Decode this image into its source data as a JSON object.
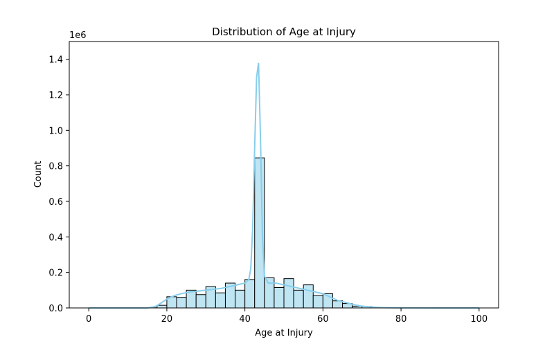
{
  "chart_data": {
    "type": "histogram",
    "title": "Distribution of Age at Injury",
    "xlabel": "Age at Injury",
    "ylabel": "Count",
    "y_offset_label": "1e6",
    "xlim": [
      -5,
      105
    ],
    "ylim": [
      0,
      1.5
    ],
    "xticks": [
      0,
      20,
      40,
      60,
      80,
      100
    ],
    "yticks": [
      0.0,
      0.2,
      0.4,
      0.6,
      0.8,
      1.0,
      1.2,
      1.4
    ],
    "ytick_labels": [
      "0.0",
      "0.2",
      "0.4",
      "0.6",
      "0.8",
      "1.0",
      "1.2",
      "1.4"
    ],
    "units_note": "y values in millions",
    "bin_width": 2.5,
    "bins": [
      {
        "start": 0.0,
        "value": 0.0
      },
      {
        "start": 2.5,
        "value": 0.0
      },
      {
        "start": 5.0,
        "value": 0.0
      },
      {
        "start": 7.5,
        "value": 0.0
      },
      {
        "start": 10.0,
        "value": 0.0
      },
      {
        "start": 12.5,
        "value": 0.0
      },
      {
        "start": 15.0,
        "value": 0.001
      },
      {
        "start": 17.5,
        "value": 0.015
      },
      {
        "start": 20.0,
        "value": 0.063
      },
      {
        "start": 22.5,
        "value": 0.06
      },
      {
        "start": 25.0,
        "value": 0.1
      },
      {
        "start": 27.5,
        "value": 0.075
      },
      {
        "start": 30.0,
        "value": 0.12
      },
      {
        "start": 32.5,
        "value": 0.085
      },
      {
        "start": 35.0,
        "value": 0.14
      },
      {
        "start": 37.5,
        "value": 0.1
      },
      {
        "start": 40.0,
        "value": 0.16
      },
      {
        "start": 42.5,
        "value": 0.845
      },
      {
        "start": 45.0,
        "value": 0.17
      },
      {
        "start": 47.5,
        "value": 0.115
      },
      {
        "start": 50.0,
        "value": 0.165
      },
      {
        "start": 52.5,
        "value": 0.1
      },
      {
        "start": 55.0,
        "value": 0.13
      },
      {
        "start": 57.5,
        "value": 0.07
      },
      {
        "start": 60.0,
        "value": 0.08
      },
      {
        "start": 62.5,
        "value": 0.04
      },
      {
        "start": 65.0,
        "value": 0.025
      },
      {
        "start": 67.5,
        "value": 0.01
      },
      {
        "start": 70.0,
        "value": 0.008
      },
      {
        "start": 72.5,
        "value": 0.003
      },
      {
        "start": 75.0,
        "value": 0.002
      },
      {
        "start": 77.5,
        "value": 0.001
      },
      {
        "start": 80.0,
        "value": 0.0005
      },
      {
        "start": 82.5,
        "value": 0.0
      },
      {
        "start": 85.0,
        "value": 0.0
      },
      {
        "start": 87.5,
        "value": 0.0
      },
      {
        "start": 90.0,
        "value": 0.0
      },
      {
        "start": 92.5,
        "value": 0.0
      },
      {
        "start": 95.0,
        "value": 0.0
      },
      {
        "start": 97.5,
        "value": 0.0
      }
    ],
    "kde_curve": {
      "x": [
        0,
        10,
        15,
        17,
        18,
        19,
        20,
        22,
        24,
        26,
        28,
        30,
        32,
        34,
        36,
        38,
        40,
        41,
        41.5,
        42,
        42.5,
        43,
        43.5,
        44,
        44.5,
        45,
        46,
        48,
        50,
        52,
        54,
        56,
        58,
        60,
        62,
        64,
        66,
        68,
        70,
        72,
        75,
        80,
        90,
        100
      ],
      "y": [
        0.0,
        0.0,
        0.0,
        0.008,
        0.02,
        0.035,
        0.05,
        0.07,
        0.082,
        0.09,
        0.095,
        0.1,
        0.105,
        0.11,
        0.12,
        0.13,
        0.14,
        0.16,
        0.22,
        0.45,
        0.9,
        1.3,
        1.38,
        0.95,
        0.4,
        0.18,
        0.14,
        0.14,
        0.13,
        0.12,
        0.11,
        0.1,
        0.09,
        0.08,
        0.06,
        0.04,
        0.03,
        0.018,
        0.01,
        0.006,
        0.002,
        0.0005,
        0.0,
        0.0
      ]
    },
    "colors": {
      "bar_fill": "#bfe4f2",
      "bar_edge": "#000000",
      "kde_line": "#87ceeb"
    },
    "grid": false,
    "legend": "none"
  }
}
